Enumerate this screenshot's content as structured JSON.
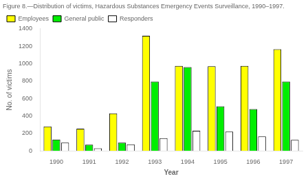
{
  "chart_data": {
    "type": "bar",
    "title": "Figure 8.—Distribution of victims, Hazardous Substances Emergency Events Surveillance, 1990–1997.",
    "categories": [
      "1990",
      "1991",
      "1992",
      "1993",
      "1994",
      "1995",
      "1996",
      "1997"
    ],
    "series": [
      {
        "name": "Employees",
        "color": "#FFFF00",
        "values": [
          280,
          255,
          430,
          1320,
          975,
          970,
          975,
          1165
        ]
      },
      {
        "name": "General public",
        "color": "#00EE00",
        "values": [
          130,
          70,
          95,
          795,
          960,
          510,
          480,
          795
        ]
      },
      {
        "name": "Responders",
        "color": "#FFFFFF",
        "values": [
          95,
          30,
          75,
          145,
          230,
          220,
          165,
          125
        ]
      }
    ],
    "xlabel": "Year",
    "ylabel": "No. of victims",
    "ylim": [
      0,
      1400
    ],
    "yticks": [
      0,
      200,
      400,
      600,
      800,
      1000,
      1200,
      1400
    ],
    "grid": false,
    "legend": "upper left"
  }
}
